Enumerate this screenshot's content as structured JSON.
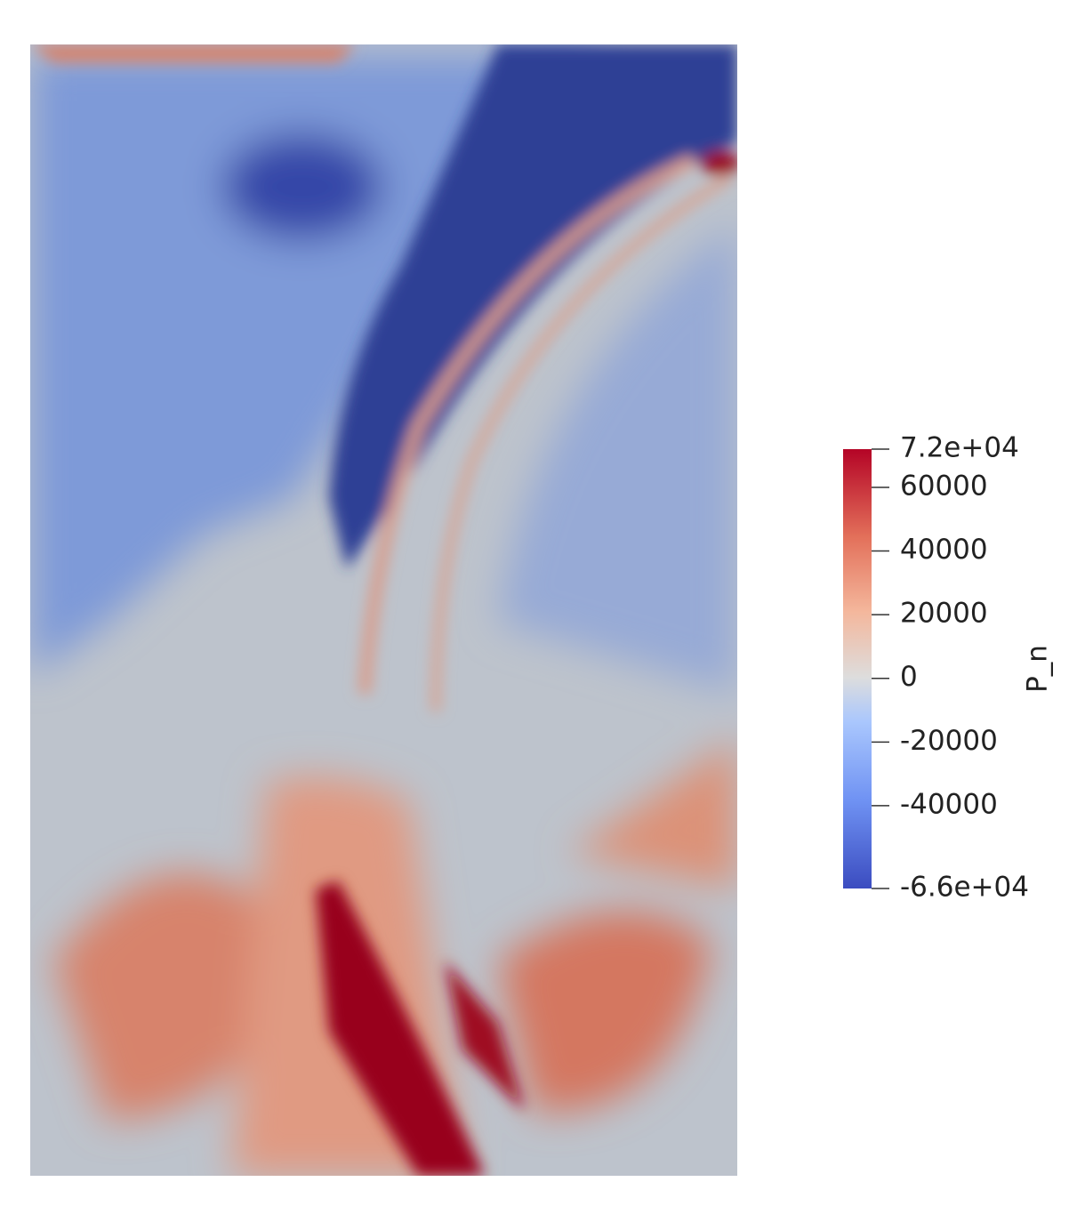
{
  "chart_data": {
    "type": "field",
    "colorbar": {
      "title": "P_n",
      "lim": [
        -66000,
        72000
      ],
      "ticks": [
        {
          "value": 72000,
          "label": "7.2e+04"
        },
        60000,
        40000,
        20000,
        0,
        -20000,
        -40000,
        {
          "value": -66000,
          "label": "-6.6e+04"
        }
      ]
    }
  }
}
